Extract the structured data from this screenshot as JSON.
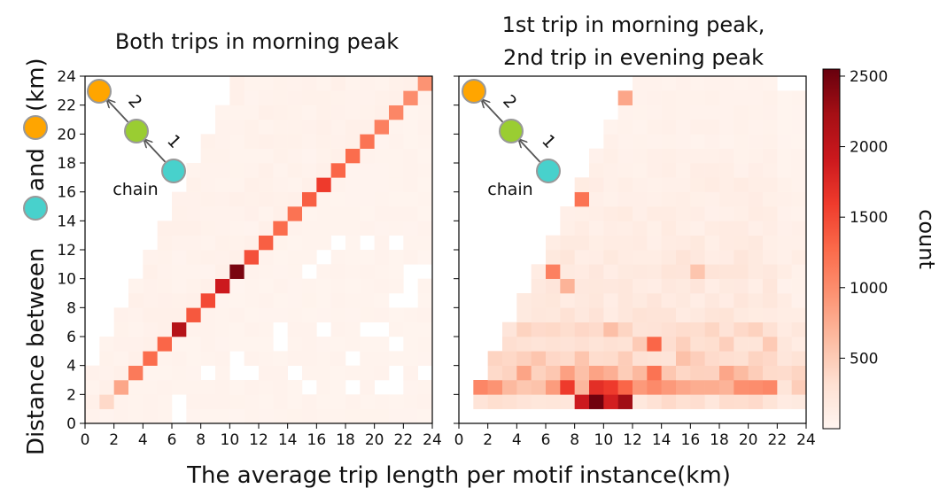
{
  "figure": {
    "xlabel": "The average trip length per motif instance(km)",
    "ylabel_part1": "Distance between",
    "ylabel_part2": "and",
    "ylabel_part3": "(km)"
  },
  "colorbar": {
    "label": "count",
    "ticks": [
      500,
      1000,
      1500,
      2000,
      2500
    ],
    "tick_labels": [
      "500",
      "1000",
      "1500",
      "2000",
      "2500"
    ],
    "range": [
      0,
      2550
    ],
    "colormap": "Reds"
  },
  "motif": {
    "chain_label": "chain",
    "edge1_label": "1",
    "edge2_label": "2",
    "node_colors": {
      "start": "#48d1cc",
      "middle": "#9acd32",
      "end": "#ffa500"
    }
  },
  "chart_data": [
    {
      "type": "heatmap",
      "title": "Both trips in morning peak",
      "xlim": [
        0,
        24
      ],
      "ylim": [
        0,
        24
      ],
      "bin_width": 1,
      "xticks": [
        0,
        2,
        4,
        6,
        8,
        10,
        12,
        14,
        16,
        18,
        20,
        22,
        24
      ],
      "yticks": [
        0,
        2,
        4,
        6,
        8,
        10,
        12,
        14,
        16,
        18,
        20,
        22,
        24
      ],
      "diagonal_values": [
        40,
        380,
        800,
        1150,
        1250,
        1300,
        2100,
        1400,
        1500,
        1900,
        2450,
        1450,
        1350,
        1250,
        1200,
        1350,
        1600,
        1300,
        1250,
        1200,
        1100,
        1050,
        1000,
        950,
        200
      ],
      "background_level": 60,
      "peak_cell": {
        "x": 10.5,
        "y": 10.5,
        "value": 2450
      }
    },
    {
      "type": "heatmap",
      "title": "1st trip in morning peak,\n2nd trip in evening peak",
      "title_lines": [
        "1st trip in morning peak,",
        "2nd trip in evening peak"
      ],
      "xlim": [
        0,
        24
      ],
      "ylim": [
        0,
        24
      ],
      "bin_width": 1,
      "xticks": [
        0,
        2,
        4,
        6,
        8,
        10,
        12,
        14,
        16,
        18,
        20,
        22,
        24
      ],
      "yticks": [
        0,
        2,
        4,
        6,
        8,
        10,
        12,
        14,
        16,
        18,
        20,
        22,
        24
      ],
      "row_profile": [
        0,
        300,
        800,
        650,
        450,
        380,
        330,
        220,
        200,
        180,
        200,
        190,
        150,
        130,
        120,
        110,
        120,
        90,
        80,
        60,
        60,
        50,
        50,
        40
      ],
      "hot_cells": [
        {
          "x": 9.5,
          "y": 1.5,
          "value": 2500
        },
        {
          "x": 11.5,
          "y": 1.5,
          "value": 2250
        },
        {
          "x": 8.5,
          "y": 1.5,
          "value": 1900
        },
        {
          "x": 10.5,
          "y": 1.5,
          "value": 1850
        },
        {
          "x": 9.5,
          "y": 2.5,
          "value": 1700
        },
        {
          "x": 10.5,
          "y": 2.5,
          "value": 1600
        },
        {
          "x": 7.5,
          "y": 2.5,
          "value": 1600
        },
        {
          "x": 11.5,
          "y": 2.5,
          "value": 1300
        },
        {
          "x": 13.5,
          "y": 5.5,
          "value": 1300
        },
        {
          "x": 13.5,
          "y": 3.5,
          "value": 1200
        },
        {
          "x": 8.5,
          "y": 15.5,
          "value": 1200
        },
        {
          "x": 6.5,
          "y": 10.5,
          "value": 1100
        },
        {
          "x": 20.5,
          "y": 2.5,
          "value": 1000
        },
        {
          "x": 14.5,
          "y": 2.5,
          "value": 900
        },
        {
          "x": 15.5,
          "y": 2.5,
          "value": 800
        },
        {
          "x": 16.5,
          "y": 2.5,
          "value": 750
        },
        {
          "x": 17.5,
          "y": 2.5,
          "value": 750
        },
        {
          "x": 18.5,
          "y": 2.5,
          "value": 700
        },
        {
          "x": 12.5,
          "y": 2.5,
          "value": 900
        },
        {
          "x": 16.5,
          "y": 10.5,
          "value": 550
        },
        {
          "x": 10.5,
          "y": 6.5,
          "value": 600
        },
        {
          "x": 7.5,
          "y": 9.5,
          "value": 700
        },
        {
          "x": 11.5,
          "y": 22.5,
          "value": 800
        }
      ]
    }
  ]
}
